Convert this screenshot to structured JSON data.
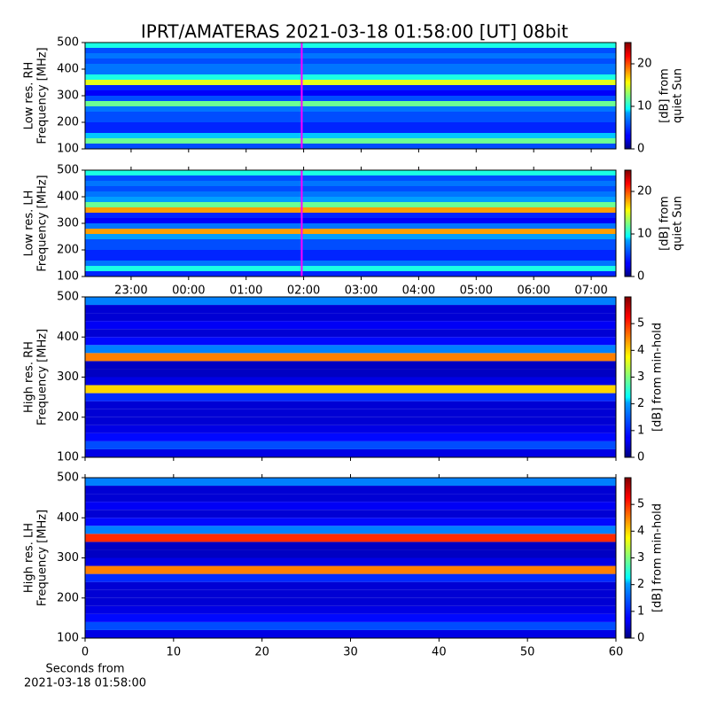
{
  "chart_data": [
    {
      "type": "heatmap",
      "title": "IPRT/AMATERAS 2021-03-18 01:58:00 [UT]   08bit",
      "ylabel": [
        "Low res. RH",
        "Frequency [MHz]"
      ],
      "ylim": [
        100,
        500
      ],
      "yticks": [
        100,
        200,
        300,
        400,
        500
      ],
      "xlim": [
        -1.8,
        7.43
      ],
      "marker_x": 1.967,
      "marker_color": "#ff00ff",
      "ybins": [
        100,
        120,
        140,
        160,
        180,
        200,
        220,
        240,
        260,
        280,
        300,
        320,
        340,
        360,
        380,
        400,
        420,
        440,
        460,
        480,
        500
      ],
      "values": [
        5,
        12,
        8,
        4,
        4,
        5,
        5,
        6,
        12,
        5,
        3,
        4,
        15,
        10,
        6,
        6,
        5,
        6,
        5,
        10
      ],
      "clim": [
        0,
        25
      ],
      "cticks": [
        0,
        10,
        20
      ],
      "clabel": [
        "[dB] from",
        "quiet Sun"
      ]
    },
    {
      "type": "heatmap",
      "ylabel": [
        "Low res. LH",
        "Frequency [MHz]"
      ],
      "ylim": [
        100,
        500
      ],
      "yticks": [
        100,
        200,
        300,
        400,
        500
      ],
      "xlim": [
        -1.8,
        7.43
      ],
      "marker_x": 1.967,
      "marker_color": "#ff00ff",
      "xticks": [
        {
          "value": -1,
          "label": "23:00"
        },
        {
          "value": 0,
          "label": "00:00"
        },
        {
          "value": 1,
          "label": "01:00"
        },
        {
          "value": 2,
          "label": "02:00"
        },
        {
          "value": 3,
          "label": "03:00"
        },
        {
          "value": 4,
          "label": "04:00"
        },
        {
          "value": 5,
          "label": "05:00"
        },
        {
          "value": 6,
          "label": "06:00"
        },
        {
          "value": 7,
          "label": "07:00"
        }
      ],
      "ybins": [
        100,
        120,
        140,
        160,
        180,
        200,
        220,
        240,
        260,
        280,
        300,
        320,
        340,
        360,
        380,
        400,
        420,
        440,
        460,
        480,
        500
      ],
      "values": [
        4,
        10,
        6,
        4,
        4,
        5,
        5,
        7,
        18,
        6,
        3,
        4,
        18,
        12,
        7,
        6,
        5,
        6,
        5,
        10
      ],
      "clim": [
        0,
        25
      ],
      "cticks": [
        0,
        10,
        20
      ],
      "clabel": [
        "[dB] from",
        "quiet Sun"
      ]
    },
    {
      "type": "heatmap",
      "ylabel": [
        "High res. RH",
        "Frequency [MHz]"
      ],
      "ylim": [
        100,
        500
      ],
      "yticks": [
        100,
        200,
        300,
        400,
        500
      ],
      "xlim": [
        0,
        60
      ],
      "ybins": [
        100,
        120,
        140,
        160,
        180,
        200,
        220,
        240,
        260,
        280,
        300,
        320,
        340,
        360,
        380,
        400,
        420,
        440,
        460,
        480,
        500
      ],
      "values": [
        0.6,
        1.2,
        0.8,
        0.6,
        0.5,
        0.5,
        0.5,
        1.0,
        4.0,
        0.6,
        0.4,
        0.4,
        4.5,
        1.5,
        0.8,
        0.5,
        0.7,
        0.5,
        0.5,
        1.5
      ],
      "clim": [
        0,
        6
      ],
      "cticks": [
        0,
        1,
        2,
        3,
        4,
        5
      ],
      "clabel": [
        "[dB] from min-hold"
      ]
    },
    {
      "type": "heatmap",
      "ylabel": [
        "High res. LH",
        "Frequency [MHz]"
      ],
      "ylim": [
        100,
        500
      ],
      "yticks": [
        100,
        200,
        300,
        400,
        500
      ],
      "xlim": [
        0,
        60
      ],
      "xticks": [
        0,
        10,
        20,
        30,
        40,
        50,
        60
      ],
      "xlabel": [
        "Seconds from",
        "2021-03-18 01:58:00"
      ],
      "ybins": [
        100,
        120,
        140,
        160,
        180,
        200,
        220,
        240,
        260,
        280,
        300,
        320,
        340,
        360,
        380,
        400,
        420,
        440,
        460,
        480,
        500
      ],
      "values": [
        0.6,
        1.2,
        0.8,
        0.6,
        0.5,
        0.5,
        0.5,
        1.0,
        4.5,
        0.6,
        0.4,
        0.4,
        5.0,
        1.5,
        0.8,
        0.5,
        0.7,
        0.5,
        0.5,
        1.5
      ],
      "clim": [
        0,
        6
      ],
      "cticks": [
        0,
        1,
        2,
        3,
        4,
        5
      ],
      "clabel": [
        "[dB] from min-hold"
      ]
    }
  ]
}
